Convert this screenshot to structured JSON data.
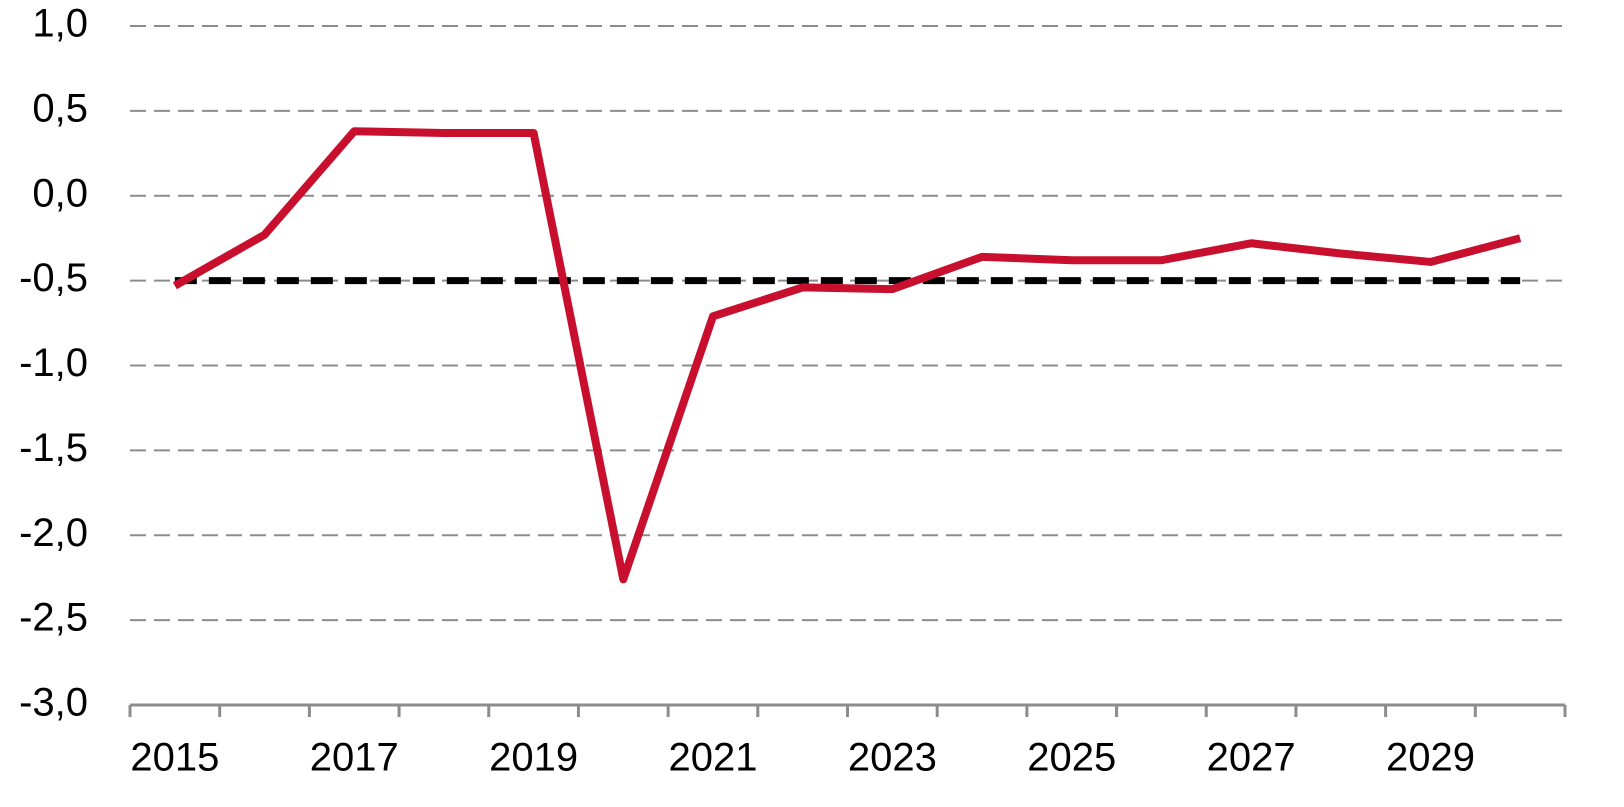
{
  "chart_data": {
    "type": "line",
    "categories": [
      "2015",
      null,
      "2017",
      null,
      "2019",
      null,
      "2021",
      null,
      "2023",
      null,
      "2025",
      null,
      "2027",
      null,
      "2029",
      null
    ],
    "series": [
      {
        "color": "#c8102e",
        "dash": false,
        "values": [
          -0.53,
          -0.23,
          0.38,
          0.37,
          0.37,
          -2.26,
          -0.71,
          -0.54,
          -0.55,
          -0.36,
          -0.38,
          -0.38,
          -0.28,
          -0.34,
          -0.39,
          -0.25
        ]
      },
      {
        "color": "#000000",
        "dash": true,
        "values": [
          -0.5,
          -0.5,
          -0.5,
          -0.5,
          -0.5,
          -0.5,
          -0.5,
          -0.5,
          -0.5,
          -0.5,
          -0.5,
          -0.5,
          -0.5,
          -0.5,
          -0.5,
          -0.5
        ]
      }
    ],
    "ylim": [
      -3,
      1
    ],
    "yticks": [
      {
        "value": -3,
        "label": "-3,0"
      },
      {
        "value": -2.5,
        "label": "-2,5"
      },
      {
        "value": -2,
        "label": "-2,0"
      },
      {
        "value": -1.5,
        "label": "-1,5"
      },
      {
        "value": -1,
        "label": "-1,0"
      },
      {
        "value": -0.5,
        "label": "-0,5"
      },
      {
        "value": 0,
        "label": "0,0"
      },
      {
        "value": 0.5,
        "label": "0,5"
      },
      {
        "value": 1,
        "label": "1,0"
      }
    ],
    "grid": true
  }
}
